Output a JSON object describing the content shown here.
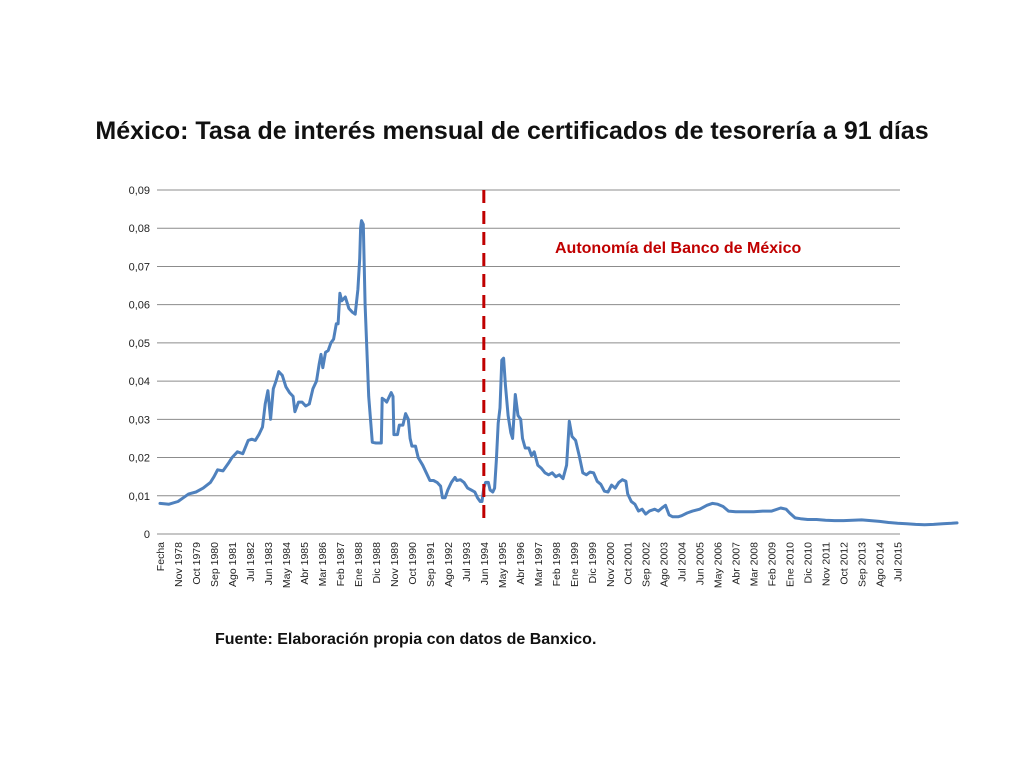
{
  "chart_data": {
    "type": "line",
    "title": "México: Tasa de interés mensual de certificados de tesorería a 91 días",
    "source": "Fuente: Elaboración propia con datos  de Banxico.",
    "annotation": {
      "text": "Autonomía del Banco de México",
      "at_label": "Jun 1994",
      "color": "#c00000"
    },
    "ylim": [
      0,
      0.09
    ],
    "yticks": [
      "0",
      "0,01",
      "0,02",
      "0,03",
      "0,04",
      "0,05",
      "0,06",
      "0,07",
      "0,08",
      "0,09"
    ],
    "grid": true,
    "line_color": "#4f81bd",
    "x_tick_labels": [
      "Fecha",
      "Nov 1978",
      "Oct 1979",
      "Sep 1980",
      "Ago 1981",
      "Jul 1982",
      "Jun 1983",
      "May 1984",
      "Abr 1985",
      "Mar 1986",
      "Feb 1987",
      "Ene 1988",
      "Dic 1988",
      "Nov 1989",
      "Oct 1990",
      "Sep 1991",
      "Ago 1992",
      "Jul 1993",
      "Jun 1994",
      "May 1995",
      "Abr 1996",
      "Mar 1997",
      "Feb 1998",
      "Ene 1999",
      "Dic 1999",
      "Nov 2000",
      "Oct 2001",
      "Sep 2002",
      "Ago 2003",
      "Jul 2004",
      "Jun 2005",
      "May 2006",
      "Abr 2007",
      "Mar 2008",
      "Feb 2009",
      "Ene 2010",
      "Dic 2010",
      "Nov 2011",
      "Oct 2012",
      "Sep 2013",
      "Ago 2014",
      "Jul 2015"
    ],
    "series": [
      {
        "name": "",
        "points": [
          [
            0.0,
            0.008
          ],
          [
            0.5,
            0.0078
          ],
          [
            1.0,
            0.0085
          ],
          [
            1.3,
            0.0095
          ],
          [
            1.6,
            0.0105
          ],
          [
            2.0,
            0.011
          ],
          [
            2.4,
            0.012
          ],
          [
            2.8,
            0.0135
          ],
          [
            3.0,
            0.015
          ],
          [
            3.2,
            0.0168
          ],
          [
            3.5,
            0.0165
          ],
          [
            3.8,
            0.0185
          ],
          [
            4.0,
            0.02
          ],
          [
            4.3,
            0.0215
          ],
          [
            4.6,
            0.021
          ],
          [
            4.9,
            0.0245
          ],
          [
            5.1,
            0.0248
          ],
          [
            5.3,
            0.0245
          ],
          [
            5.5,
            0.026
          ],
          [
            5.7,
            0.028
          ],
          [
            5.85,
            0.034
          ],
          [
            6.0,
            0.0375
          ],
          [
            6.15,
            0.03
          ],
          [
            6.3,
            0.038
          ],
          [
            6.45,
            0.04
          ],
          [
            6.6,
            0.0425
          ],
          [
            6.8,
            0.0415
          ],
          [
            7.0,
            0.0385
          ],
          [
            7.2,
            0.037
          ],
          [
            7.4,
            0.036
          ],
          [
            7.5,
            0.032
          ],
          [
            7.7,
            0.0345
          ],
          [
            7.9,
            0.0345
          ],
          [
            8.1,
            0.0335
          ],
          [
            8.3,
            0.034
          ],
          [
            8.5,
            0.038
          ],
          [
            8.7,
            0.04
          ],
          [
            8.85,
            0.0445
          ],
          [
            8.95,
            0.047
          ],
          [
            9.05,
            0.0435
          ],
          [
            9.2,
            0.0475
          ],
          [
            9.35,
            0.048
          ],
          [
            9.5,
            0.05
          ],
          [
            9.65,
            0.051
          ],
          [
            9.8,
            0.055
          ],
          [
            9.9,
            0.055
          ],
          [
            10.0,
            0.063
          ],
          [
            10.1,
            0.061
          ],
          [
            10.3,
            0.062
          ],
          [
            10.5,
            0.059
          ],
          [
            10.7,
            0.058
          ],
          [
            10.85,
            0.0575
          ],
          [
            11.0,
            0.064
          ],
          [
            11.1,
            0.072
          ],
          [
            11.15,
            0.08
          ],
          [
            11.2,
            0.082
          ],
          [
            11.3,
            0.081
          ],
          [
            11.4,
            0.06
          ],
          [
            11.5,
            0.048
          ],
          [
            11.6,
            0.036
          ],
          [
            11.7,
            0.03
          ],
          [
            11.8,
            0.024
          ],
          [
            12.0,
            0.0238
          ],
          [
            12.2,
            0.0238
          ],
          [
            12.3,
            0.0238
          ],
          [
            12.35,
            0.0355
          ],
          [
            12.5,
            0.035
          ],
          [
            12.6,
            0.0345
          ],
          [
            12.75,
            0.036
          ],
          [
            12.85,
            0.037
          ],
          [
            12.95,
            0.036
          ],
          [
            13.0,
            0.026
          ],
          [
            13.2,
            0.026
          ],
          [
            13.3,
            0.0285
          ],
          [
            13.5,
            0.0285
          ],
          [
            13.65,
            0.0315
          ],
          [
            13.8,
            0.03
          ],
          [
            13.9,
            0.025
          ],
          [
            14.0,
            0.023
          ],
          [
            14.2,
            0.023
          ],
          [
            14.35,
            0.02
          ],
          [
            14.6,
            0.018
          ],
          [
            14.8,
            0.016
          ],
          [
            15.0,
            0.014
          ],
          [
            15.2,
            0.014
          ],
          [
            15.4,
            0.0135
          ],
          [
            15.6,
            0.0125
          ],
          [
            15.7,
            0.0095
          ],
          [
            15.85,
            0.0095
          ],
          [
            16.0,
            0.0115
          ],
          [
            16.2,
            0.0135
          ],
          [
            16.4,
            0.0148
          ],
          [
            16.5,
            0.014
          ],
          [
            16.7,
            0.0142
          ],
          [
            16.9,
            0.0135
          ],
          [
            17.1,
            0.012
          ],
          [
            17.3,
            0.0115
          ],
          [
            17.5,
            0.011
          ],
          [
            17.65,
            0.0095
          ],
          [
            17.8,
            0.0085
          ],
          [
            17.9,
            0.0085
          ],
          [
            18.0,
            0.012
          ],
          [
            18.1,
            0.0135
          ],
          [
            18.25,
            0.0135
          ],
          [
            18.35,
            0.0115
          ],
          [
            18.5,
            0.011
          ],
          [
            18.6,
            0.012
          ],
          [
            18.7,
            0.0195
          ],
          [
            18.8,
            0.029
          ],
          [
            18.9,
            0.033
          ],
          [
            19.0,
            0.0455
          ],
          [
            19.1,
            0.046
          ],
          [
            19.2,
            0.039
          ],
          [
            19.35,
            0.031
          ],
          [
            19.5,
            0.0265
          ],
          [
            19.6,
            0.025
          ],
          [
            19.75,
            0.0365
          ],
          [
            19.9,
            0.031
          ],
          [
            20.05,
            0.03
          ],
          [
            20.15,
            0.025
          ],
          [
            20.3,
            0.0225
          ],
          [
            20.5,
            0.0225
          ],
          [
            20.65,
            0.0205
          ],
          [
            20.8,
            0.0215
          ],
          [
            21.0,
            0.018
          ],
          [
            21.2,
            0.0172
          ],
          [
            21.4,
            0.016
          ],
          [
            21.6,
            0.0155
          ],
          [
            21.8,
            0.016
          ],
          [
            22.0,
            0.015
          ],
          [
            22.2,
            0.0155
          ],
          [
            22.4,
            0.0145
          ],
          [
            22.6,
            0.018
          ],
          [
            22.75,
            0.0295
          ],
          [
            22.9,
            0.0255
          ],
          [
            23.1,
            0.0245
          ],
          [
            23.3,
            0.0205
          ],
          [
            23.5,
            0.016
          ],
          [
            23.7,
            0.0155
          ],
          [
            23.9,
            0.0162
          ],
          [
            24.1,
            0.016
          ],
          [
            24.3,
            0.0138
          ],
          [
            24.5,
            0.013
          ],
          [
            24.7,
            0.0112
          ],
          [
            24.9,
            0.011
          ],
          [
            25.1,
            0.0128
          ],
          [
            25.3,
            0.012
          ],
          [
            25.5,
            0.0135
          ],
          [
            25.7,
            0.0142
          ],
          [
            25.9,
            0.0138
          ],
          [
            26.0,
            0.0105
          ],
          [
            26.2,
            0.0085
          ],
          [
            26.4,
            0.0078
          ],
          [
            26.6,
            0.006
          ],
          [
            26.8,
            0.0065
          ],
          [
            27.0,
            0.0052
          ],
          [
            27.2,
            0.006
          ],
          [
            27.5,
            0.0065
          ],
          [
            27.7,
            0.006
          ],
          [
            27.9,
            0.0068
          ],
          [
            28.1,
            0.0075
          ],
          [
            28.3,
            0.005
          ],
          [
            28.5,
            0.0045
          ],
          [
            28.8,
            0.0045
          ],
          [
            29.0,
            0.0048
          ],
          [
            29.3,
            0.0055
          ],
          [
            29.6,
            0.006
          ],
          [
            30.0,
            0.0065
          ],
          [
            30.4,
            0.0075
          ],
          [
            30.7,
            0.008
          ],
          [
            31.0,
            0.0078
          ],
          [
            31.3,
            0.0072
          ],
          [
            31.6,
            0.006
          ],
          [
            32.0,
            0.0058
          ],
          [
            32.5,
            0.0058
          ],
          [
            33.0,
            0.0058
          ],
          [
            33.5,
            0.006
          ],
          [
            34.0,
            0.006
          ],
          [
            34.5,
            0.0068
          ],
          [
            34.8,
            0.0065
          ],
          [
            35.0,
            0.0055
          ],
          [
            35.3,
            0.0042
          ],
          [
            35.6,
            0.004
          ],
          [
            36.0,
            0.0038
          ],
          [
            36.5,
            0.0038
          ],
          [
            37.0,
            0.0036
          ],
          [
            37.5,
            0.0035
          ],
          [
            38.0,
            0.0035
          ],
          [
            38.5,
            0.0036
          ],
          [
            39.0,
            0.0037
          ],
          [
            39.5,
            0.0035
          ],
          [
            40.0,
            0.0033
          ],
          [
            40.5,
            0.003
          ],
          [
            41.0,
            0.0028
          ],
          [
            41.5,
            0.0027
          ],
          [
            42.0,
            0.0025
          ],
          [
            42.5,
            0.0024
          ],
          [
            43.0,
            0.0025
          ],
          [
            43.5,
            0.0027
          ],
          [
            44.0,
            0.0028
          ],
          [
            44.3,
            0.0029
          ]
        ]
      }
    ]
  }
}
